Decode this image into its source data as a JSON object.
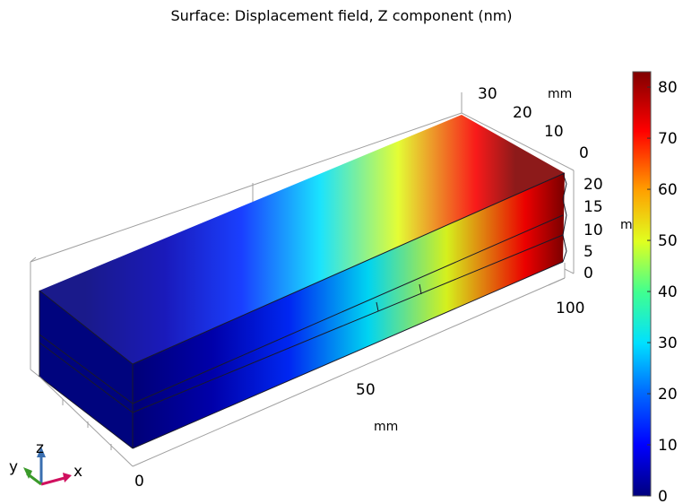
{
  "title": "Surface: Displacement field, Z component (nm)",
  "chart_data": {
    "type": "heatmap",
    "plot_type": "3D surface plot on a rectangular block",
    "quantity": "Displacement field, Z component",
    "unit": "nm",
    "colormap": "rainbow (dark blue → blue → cyan → green → yellow → red → dark red)",
    "colorbar": {
      "min": 0,
      "max": 83,
      "ticks": [
        "0",
        "10",
        "20",
        "30",
        "40",
        "50",
        "60",
        "70",
        "80"
      ],
      "tick_values": [
        0,
        10,
        20,
        30,
        40,
        50,
        60,
        70,
        80
      ],
      "placement": "right"
    },
    "axes": {
      "x": {
        "unit": "mm",
        "ticks": [
          "0",
          "50",
          "100"
        ],
        "range": [
          0,
          110
        ]
      },
      "y": {
        "unit": "mm",
        "ticks": [
          "0",
          "10",
          "20",
          "30"
        ],
        "range": [
          0,
          35
        ]
      },
      "z": {
        "unit": "mm",
        "ticks": [
          "0",
          "5",
          "10",
          "15",
          "20"
        ],
        "range": [
          0,
          22
        ]
      }
    },
    "field_profile": {
      "description": "Z displacement grows along the x direction",
      "x_mm": [
        0,
        20,
        40,
        60,
        80,
        100,
        110
      ],
      "w_nm": [
        0,
        4,
        14,
        30,
        50,
        72,
        83
      ]
    },
    "grid": true
  },
  "triad": {
    "x": "x",
    "y": "y",
    "z": "z"
  },
  "colors": {
    "box_lines": "#9a9a9a",
    "triad_x": "#d0105f",
    "triad_y": "#3a9a2a",
    "triad_z": "#3a6fb0"
  }
}
